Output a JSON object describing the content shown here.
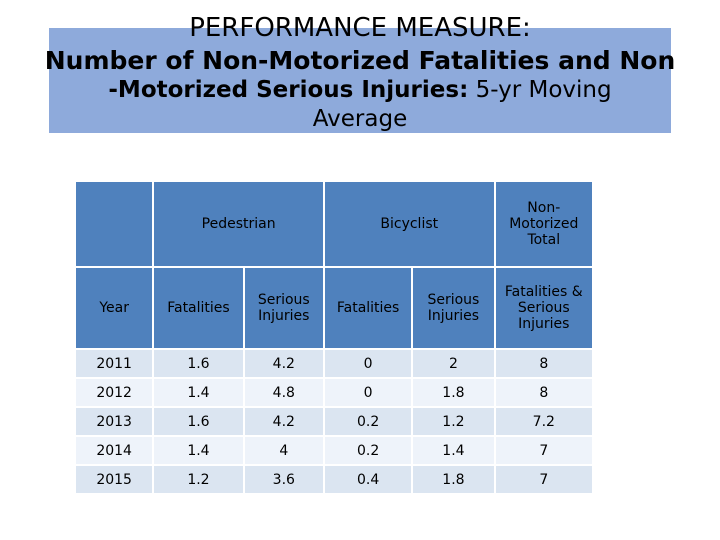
{
  "title": {
    "line1": "PERFORMANCE MEASURE:",
    "line2": "Number of Non-Motorized Fatalities and Non",
    "line3_bold": "-Motorized Serious Injuries:",
    "line3_normal": "5-yr Moving",
    "line4": "Average"
  },
  "table": {
    "group_headers": {
      "pedestrian": "Pedestrian",
      "bicyclist": "Bicyclist",
      "nonmotorized_total": "Non-Motorized Total"
    },
    "sub_headers": {
      "year": "Year",
      "ped_fatalities": "Fatalities",
      "ped_serious": "Serious Injuries",
      "bike_fatalities": "Fatalities",
      "bike_serious": "Serious Injuries",
      "total": "Fatalities & Serious Injuries"
    },
    "rows": [
      {
        "year": "2011",
        "ped_fat": "1.6",
        "ped_inj": "4.2",
        "bike_fat": "0",
        "bike_inj": "2",
        "total": "8"
      },
      {
        "year": "2012",
        "ped_fat": "1.4",
        "ped_inj": "4.8",
        "bike_fat": "0",
        "bike_inj": "1.8",
        "total": "8"
      },
      {
        "year": "2013",
        "ped_fat": "1.6",
        "ped_inj": "4.2",
        "bike_fat": "0.2",
        "bike_inj": "1.2",
        "total": "7.2"
      },
      {
        "year": "2014",
        "ped_fat": "1.4",
        "ped_inj": "4",
        "bike_fat": "0.2",
        "bike_inj": "1.4",
        "total": "7"
      },
      {
        "year": "2015",
        "ped_fat": "1.2",
        "ped_inj": "3.6",
        "bike_fat": "0.4",
        "bike_inj": "1.8",
        "total": "7"
      }
    ]
  }
}
